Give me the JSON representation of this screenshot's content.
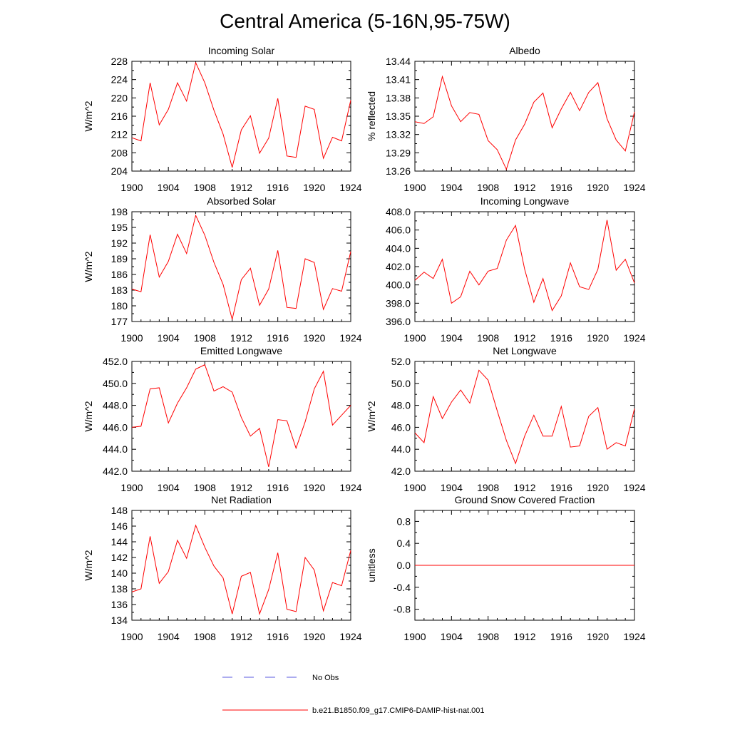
{
  "title": "Central America (5-16N,95-75W)",
  "colors": {
    "series": "#ff0000",
    "obs": "#5a5adf",
    "axis": "#000000"
  },
  "legend": {
    "items": [
      {
        "label": "No Obs",
        "style": "dashed",
        "color": "#5a5adf"
      },
      {
        "label": "b.e21.B1850.f09_g17.CMIP6-DAMIP-hist-nat.001",
        "style": "solid",
        "color": "#ff0000"
      }
    ]
  },
  "chart_data": [
    {
      "type": "line",
      "title": "Incoming Solar",
      "ylabel": "W/m^2",
      "xlim": [
        1900,
        1924
      ],
      "ylim": [
        204,
        228
      ],
      "xticks": [
        "1900",
        "1904",
        "1908",
        "1912",
        "1916",
        "1920",
        "1924"
      ],
      "yticks": [
        "204",
        "208",
        "212",
        "216",
        "220",
        "224",
        "228"
      ],
      "x": [
        1900,
        1901,
        1902,
        1903,
        1904,
        1905,
        1906,
        1907,
        1908,
        1909,
        1910,
        1911,
        1912,
        1913,
        1914,
        1915,
        1916,
        1917,
        1918,
        1919,
        1920,
        1921,
        1922,
        1923,
        1924
      ],
      "series": [
        {
          "values": [
            211.3,
            210.6,
            223.3,
            214.1,
            217.5,
            223.3,
            219.3,
            227.7,
            223.3,
            217.3,
            212.1,
            204.8,
            213.0,
            216.1,
            207.9,
            211.2,
            219.9,
            207.3,
            207.0,
            218.2,
            217.5,
            206.8,
            211.4,
            210.6,
            219.5
          ]
        }
      ]
    },
    {
      "type": "line",
      "title": "Albedo",
      "ylabel": "% reflected",
      "xlim": [
        1900,
        1924
      ],
      "ylim": [
        13.26,
        13.44
      ],
      "xticks": [
        "1900",
        "1904",
        "1908",
        "1912",
        "1916",
        "1920",
        "1924"
      ],
      "yticks": [
        "13.26",
        "13.29",
        "13.32",
        "13.35",
        "13.38",
        "13.41",
        "13.44"
      ],
      "x": [
        1900,
        1901,
        1902,
        1903,
        1904,
        1905,
        1906,
        1907,
        1908,
        1909,
        1910,
        1911,
        1912,
        1913,
        1914,
        1915,
        1916,
        1917,
        1918,
        1919,
        1920,
        1921,
        1922,
        1923,
        1924
      ],
      "series": [
        {
          "values": [
            13.341,
            13.338,
            13.349,
            13.415,
            13.367,
            13.341,
            13.356,
            13.353,
            13.31,
            13.295,
            13.263,
            13.311,
            13.337,
            13.373,
            13.388,
            13.331,
            13.362,
            13.389,
            13.359,
            13.389,
            13.405,
            13.346,
            13.311,
            13.293,
            13.357
          ]
        }
      ]
    },
    {
      "type": "line",
      "title": "Absorbed Solar",
      "ylabel": "W/m^2",
      "xlim": [
        1900,
        1924
      ],
      "ylim": [
        177,
        198
      ],
      "xticks": [
        "1900",
        "1904",
        "1908",
        "1912",
        "1916",
        "1920",
        "1924"
      ],
      "yticks": [
        "177",
        "180",
        "183",
        "186",
        "189",
        "192",
        "195",
        "198"
      ],
      "x": [
        1900,
        1901,
        1902,
        1903,
        1904,
        1905,
        1906,
        1907,
        1908,
        1909,
        1910,
        1911,
        1912,
        1913,
        1914,
        1915,
        1916,
        1917,
        1918,
        1919,
        1920,
        1921,
        1922,
        1923,
        1924
      ],
      "series": [
        {
          "values": [
            183.2,
            182.7,
            193.6,
            185.5,
            188.5,
            193.7,
            190.0,
            197.3,
            193.5,
            188.3,
            184.1,
            177.4,
            185.0,
            187.2,
            180.1,
            183.2,
            190.6,
            179.7,
            179.5,
            189.0,
            188.3,
            179.3,
            183.3,
            182.8,
            190.4
          ]
        }
      ]
    },
    {
      "type": "line",
      "title": "Incoming Longwave",
      "xlim": [
        1900,
        1924
      ],
      "ylim": [
        396.0,
        408.0
      ],
      "xticks": [
        "1900",
        "1904",
        "1908",
        "1912",
        "1916",
        "1920",
        "1924"
      ],
      "yticks": [
        "396.0",
        "398.0",
        "400.0",
        "402.0",
        "404.0",
        "406.0",
        "408.0"
      ],
      "x": [
        1900,
        1901,
        1902,
        1903,
        1904,
        1905,
        1906,
        1907,
        1908,
        1909,
        1910,
        1911,
        1912,
        1913,
        1914,
        1915,
        1916,
        1917,
        1918,
        1919,
        1920,
        1921,
        1922,
        1923,
        1924
      ],
      "series": [
        {
          "values": [
            400.5,
            401.4,
            400.7,
            402.8,
            398.0,
            398.7,
            401.5,
            400.0,
            401.5,
            401.8,
            404.9,
            406.5,
            401.7,
            398.1,
            400.7,
            397.2,
            398.8,
            402.4,
            399.8,
            399.5,
            401.7,
            407.1,
            401.6,
            402.8,
            400.2
          ]
        }
      ]
    },
    {
      "type": "line",
      "title": "Emitted Longwave",
      "ylabel": "W/m^2",
      "xlim": [
        1900,
        1924
      ],
      "ylim": [
        442.0,
        452.0
      ],
      "xticks": [
        "1900",
        "1904",
        "1908",
        "1912",
        "1916",
        "1920",
        "1924"
      ],
      "yticks": [
        "442.0",
        "444.0",
        "446.0",
        "448.0",
        "450.0",
        "452.0"
      ],
      "x": [
        1900,
        1901,
        1902,
        1903,
        1904,
        1905,
        1906,
        1907,
        1908,
        1909,
        1910,
        1911,
        1912,
        1913,
        1914,
        1915,
        1916,
        1917,
        1918,
        1919,
        1920,
        1921,
        1922,
        1923,
        1924
      ],
      "series": [
        {
          "values": [
            446.0,
            446.1,
            449.5,
            449.6,
            446.4,
            448.2,
            449.6,
            451.3,
            451.7,
            449.3,
            449.7,
            449.2,
            446.9,
            445.2,
            445.9,
            442.4,
            446.7,
            446.6,
            444.1,
            446.5,
            449.5,
            451.1,
            446.2,
            447.1,
            448.0
          ]
        }
      ]
    },
    {
      "type": "line",
      "title": "Net Longwave",
      "ylabel": "W/m^2",
      "xlim": [
        1900,
        1924
      ],
      "ylim": [
        42.0,
        52.0
      ],
      "xticks": [
        "1900",
        "1904",
        "1908",
        "1912",
        "1916",
        "1920",
        "1924"
      ],
      "yticks": [
        "42.0",
        "44.0",
        "46.0",
        "48.0",
        "50.0",
        "52.0"
      ],
      "x": [
        1900,
        1901,
        1902,
        1903,
        1904,
        1905,
        1906,
        1907,
        1908,
        1909,
        1910,
        1911,
        1912,
        1913,
        1914,
        1915,
        1916,
        1917,
        1918,
        1919,
        1920,
        1921,
        1922,
        1923,
        1924
      ],
      "series": [
        {
          "values": [
            45.5,
            44.6,
            48.8,
            46.8,
            48.3,
            49.4,
            48.2,
            51.2,
            50.3,
            47.5,
            44.8,
            42.7,
            45.2,
            47.1,
            45.2,
            45.2,
            47.9,
            44.2,
            44.3,
            47.0,
            47.8,
            44.0,
            44.6,
            44.3,
            47.7
          ]
        }
      ]
    },
    {
      "type": "line",
      "title": "Net Radiation",
      "ylabel": "W/m^2",
      "xlim": [
        1900,
        1924
      ],
      "ylim": [
        134,
        148
      ],
      "xticks": [
        "1900",
        "1904",
        "1908",
        "1912",
        "1916",
        "1920",
        "1924"
      ],
      "yticks": [
        "134",
        "136",
        "138",
        "140",
        "142",
        "144",
        "146",
        "148"
      ],
      "x": [
        1900,
        1901,
        1902,
        1903,
        1904,
        1905,
        1906,
        1907,
        1908,
        1909,
        1910,
        1911,
        1912,
        1913,
        1914,
        1915,
        1916,
        1917,
        1918,
        1919,
        1920,
        1921,
        1922,
        1923,
        1924
      ],
      "series": [
        {
          "values": [
            137.6,
            138.0,
            144.7,
            138.7,
            140.2,
            144.2,
            141.9,
            146.1,
            143.3,
            140.9,
            139.4,
            134.8,
            139.6,
            140.1,
            134.8,
            137.9,
            142.6,
            135.4,
            135.1,
            142.0,
            140.4,
            135.2,
            138.8,
            138.4,
            142.9
          ]
        }
      ]
    },
    {
      "type": "line",
      "title": "Ground Snow Covered Fraction",
      "ylabel": "unitless",
      "xlim": [
        1900,
        1924
      ],
      "ylim": [
        -1.0,
        1.0
      ],
      "xticks": [
        "1900",
        "1904",
        "1908",
        "1912",
        "1916",
        "1920",
        "1924"
      ],
      "yticks": [
        "-0.8",
        "-0.4",
        "0.0",
        "0.4",
        "0.8"
      ],
      "ytick_values": [
        -0.8,
        -0.4,
        0.0,
        0.4,
        0.8
      ],
      "x": [
        1900,
        1924
      ],
      "series": [
        {
          "values": [
            0.0,
            0.0
          ]
        }
      ]
    }
  ]
}
